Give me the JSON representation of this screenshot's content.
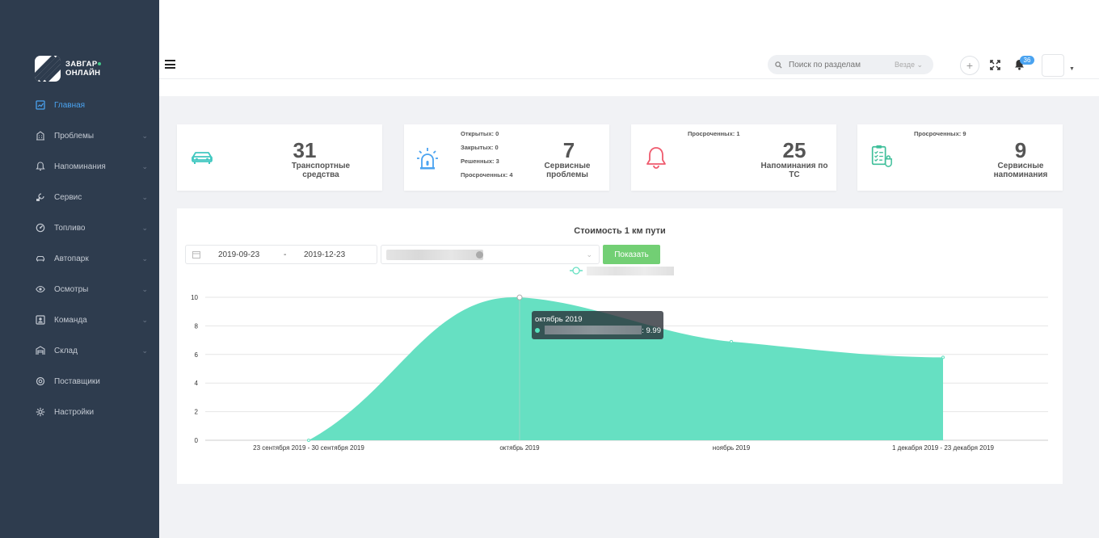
{
  "brand": {
    "line1": "ЗАВГАР",
    "line2": "ОНЛАЙН",
    "accent": "#43c98a"
  },
  "sidebar": {
    "items": [
      {
        "label": "Главная",
        "icon": "dashboard-icon",
        "active": true,
        "expandable": false
      },
      {
        "label": "Проблемы",
        "icon": "building-icon",
        "active": false,
        "expandable": true
      },
      {
        "label": "Напоминания",
        "icon": "bell-icon",
        "active": false,
        "expandable": true
      },
      {
        "label": "Сервис",
        "icon": "service-icon",
        "active": false,
        "expandable": true
      },
      {
        "label": "Топливо",
        "icon": "fuel-icon",
        "active": false,
        "expandable": true
      },
      {
        "label": "Автопарк",
        "icon": "car-icon",
        "active": false,
        "expandable": true
      },
      {
        "label": "Осмотры",
        "icon": "eye-icon",
        "active": false,
        "expandable": true
      },
      {
        "label": "Команда",
        "icon": "team-icon",
        "active": false,
        "expandable": true
      },
      {
        "label": "Склад",
        "icon": "warehouse-icon",
        "active": false,
        "expandable": true
      },
      {
        "label": "Поставщики",
        "icon": "supplier-icon",
        "active": false,
        "expandable": false
      },
      {
        "label": "Настройки",
        "icon": "gear-icon",
        "active": false,
        "expandable": false
      }
    ]
  },
  "header": {
    "search_placeholder": "Поиск по разделам",
    "search_scope": "Везде",
    "notifications_count": "36"
  },
  "cards": {
    "vehicles": {
      "value": "31",
      "label_line1": "Транспортные",
      "label_line2": "средства",
      "icon_color": "#40c8c0"
    },
    "issues": {
      "value": "7",
      "label_line1": "Сервисные",
      "label_line2": "проблемы",
      "open": "Открытых: 0",
      "closed": "Закрытых: 0",
      "resolved": "Решенных: 3",
      "overdue": "Просроченных: 4",
      "icon_color": "#4aa3f0"
    },
    "vehicle_reminders": {
      "value": "25",
      "label_line1": "Напоминания по",
      "label_line2": "ТС",
      "overdue": "Просроченных: 1",
      "icon_color": "#ef5b6e"
    },
    "service_reminders": {
      "value": "9",
      "label_line1": "Сервисные",
      "label_line2": "напоминания",
      "overdue": "Просроченных: 9",
      "icon_color": "#3fbf9a"
    }
  },
  "chart_panel": {
    "title": "Стоимость 1 км пути",
    "date_from": "2019-09-23",
    "date_sep": "-",
    "date_to": "2019-12-23",
    "show_button": "Показать",
    "tooltip_title": "октябрь 2019",
    "tooltip_value": ": 9.99"
  },
  "chart_data": {
    "type": "area",
    "title": "Стоимость 1 км пути",
    "categories": [
      "23 сентября 2019 - 30 сентября 2019",
      "октябрь 2019",
      "ноябрь 2019",
      "1 декабря 2019 - 23 декабря 2019"
    ],
    "series": [
      {
        "values": [
          0,
          9.99,
          6.9,
          5.8
        ],
        "color": "#66e0c2"
      }
    ],
    "ylim": [
      0,
      10
    ],
    "yticks": [
      "0",
      "2",
      "4",
      "6",
      "8",
      "10"
    ],
    "grid": true
  }
}
